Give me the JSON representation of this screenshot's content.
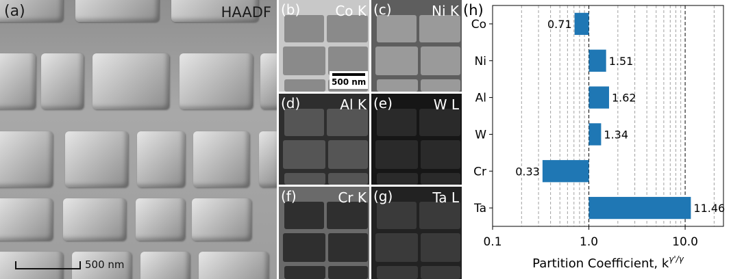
{
  "panel_a": {
    "label": "(a)",
    "title": "HAADF",
    "scalebar": "500 nm"
  },
  "panel_b": {
    "label": "(b)",
    "element": "Co K",
    "scalebar": "500 nm"
  },
  "panel_c": {
    "label": "(c)",
    "element": "Ni K"
  },
  "panel_d": {
    "label": "(d)",
    "element": "Al K"
  },
  "panel_e": {
    "label": "(e)",
    "element": "W L"
  },
  "panel_f": {
    "label": "(f)",
    "element": "Cr K"
  },
  "panel_g": {
    "label": "(g)",
    "element": "Ta L"
  },
  "panel_h": {
    "label": "(h)"
  },
  "chart_data": {
    "type": "bar",
    "orientation": "horizontal",
    "categories": [
      "Co",
      "Ni",
      "Al",
      "W",
      "Cr",
      "Ta"
    ],
    "values": [
      0.71,
      1.51,
      1.62,
      1.34,
      0.33,
      11.46
    ],
    "value_labels": [
      "0.71",
      "1.51",
      "1.62",
      "1.34",
      "0.33",
      "11.46"
    ],
    "xlabel": "Partition Coefficient, k",
    "xlabel_superscript": "γ'/γ",
    "xscale": "log",
    "xlim": [
      0.1,
      25
    ],
    "xticks": [
      "0.1",
      "1.0",
      "10.0"
    ],
    "reference_lines": [
      1.0,
      10.0
    ],
    "grid": "vertical minor dashed",
    "bar_color": "#1f77b4"
  }
}
